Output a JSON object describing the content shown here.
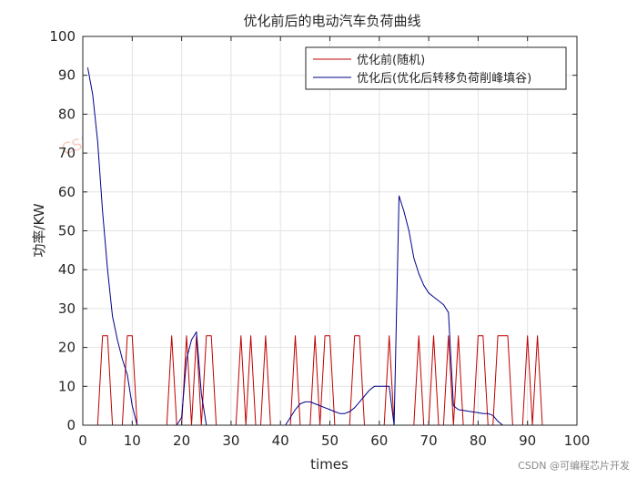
{
  "credit": "CSDN @可编程芯片开发",
  "watermark": "CSDN博客:可编程芯片开发",
  "chart_data": {
    "type": "line",
    "title": "优化前后的电动汽车负荷曲线",
    "xlabel": "times",
    "ylabel": "功率/KW",
    "xlim": [
      0,
      100
    ],
    "ylim": [
      0,
      100
    ],
    "xticks": [
      0,
      10,
      20,
      30,
      40,
      50,
      60,
      70,
      80,
      90,
      100
    ],
    "yticks": [
      0,
      10,
      20,
      30,
      40,
      50,
      60,
      70,
      80,
      90,
      100
    ],
    "grid": true,
    "legend_position": "top-right",
    "series": [
      {
        "name": "优化前(随机)",
        "color": "#c00000",
        "x": [
          1,
          2,
          3,
          4,
          5,
          6,
          7,
          8,
          9,
          10,
          11,
          12,
          13,
          14,
          15,
          16,
          17,
          18,
          19,
          20,
          21,
          22,
          23,
          24,
          25,
          26,
          27,
          28,
          29,
          30,
          31,
          32,
          33,
          34,
          35,
          36,
          37,
          38,
          39,
          40,
          41,
          42,
          43,
          44,
          45,
          46,
          47,
          48,
          49,
          50,
          51,
          52,
          53,
          54,
          55,
          56,
          57,
          58,
          59,
          60,
          61,
          62,
          63,
          64,
          65,
          66,
          67,
          68,
          69,
          70,
          71,
          72,
          73,
          74,
          75,
          76,
          77,
          78,
          79,
          80,
          81,
          82,
          83,
          84,
          85,
          86,
          87,
          88,
          89,
          90,
          91,
          92,
          93,
          94,
          95
        ],
        "values": [
          0,
          0,
          0,
          23,
          23,
          0,
          0,
          0,
          23,
          23,
          0,
          0,
          0,
          0,
          0,
          0,
          0,
          23,
          0,
          0,
          23,
          0,
          23,
          0,
          23,
          23,
          0,
          0,
          0,
          0,
          0,
          23,
          0,
          23,
          0,
          0,
          23,
          0,
          0,
          0,
          0,
          0,
          23,
          0,
          0,
          0,
          23,
          0,
          23,
          23,
          0,
          0,
          0,
          0,
          23,
          23,
          0,
          0,
          0,
          0,
          0,
          23,
          0,
          0,
          0,
          0,
          0,
          23,
          0,
          0,
          23,
          0,
          0,
          23,
          0,
          23,
          0,
          0,
          0,
          23,
          23,
          0,
          0,
          23,
          23,
          23,
          0,
          0,
          0,
          23,
          0,
          23,
          0,
          0,
          0
        ]
      },
      {
        "name": "优化后(优化后转移负荷削峰填谷)",
        "color": "#00008b",
        "x": [
          1,
          2,
          3,
          4,
          5,
          6,
          7,
          8,
          9,
          10,
          11,
          12,
          13,
          14,
          15,
          16,
          17,
          18,
          19,
          20,
          21,
          22,
          23,
          24,
          25,
          26,
          27,
          28,
          29,
          30,
          31,
          32,
          33,
          34,
          35,
          36,
          37,
          38,
          39,
          40,
          41,
          42,
          43,
          44,
          45,
          46,
          47,
          48,
          49,
          50,
          51,
          52,
          53,
          54,
          55,
          56,
          57,
          58,
          59,
          60,
          61,
          62,
          63,
          64,
          65,
          66,
          67,
          68,
          69,
          70,
          71,
          72,
          73,
          74,
          75,
          76,
          77,
          78,
          79,
          80,
          81,
          82,
          83,
          84,
          85,
          86,
          87,
          88,
          89,
          90,
          91,
          92,
          93,
          94,
          95
        ],
        "values": [
          92,
          85,
          73,
          55,
          40,
          28,
          22,
          17,
          13,
          5,
          0,
          0,
          0,
          0,
          0,
          0,
          0,
          0,
          0,
          2,
          17,
          22,
          24,
          8,
          0,
          0,
          0,
          0,
          0,
          0,
          0,
          0,
          0,
          0,
          0,
          0,
          0,
          0,
          0,
          0,
          0,
          2,
          4,
          5.5,
          6,
          6,
          5.5,
          5,
          4.5,
          4,
          3.5,
          3,
          3,
          3.5,
          4.5,
          6,
          7.5,
          9,
          10,
          10,
          10,
          10,
          0,
          59,
          55,
          50,
          43,
          39,
          36,
          34,
          33,
          32,
          31,
          29,
          5,
          4,
          3.8,
          3.6,
          3.4,
          3.2,
          3,
          3,
          2.5,
          1,
          0,
          0,
          0,
          0,
          0,
          0,
          0,
          0,
          0,
          0,
          0
        ]
      }
    ]
  }
}
